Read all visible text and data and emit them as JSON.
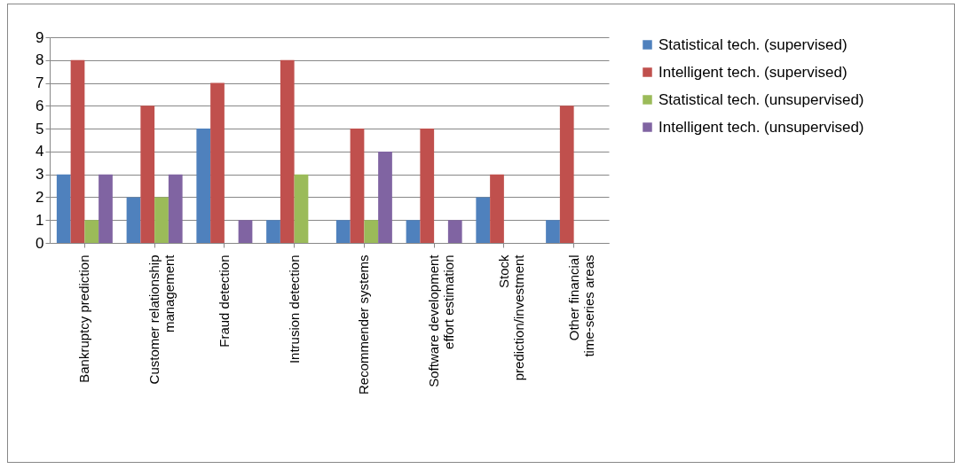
{
  "chart_data": {
    "type": "bar",
    "categories": [
      "Bankruptcy prediction",
      "Customer relationship management",
      "Fraud detection",
      "Intrusion detection",
      "Recommender systems",
      "Software development effort estimation",
      "Stock prediction/investment",
      "Other financial time-series areas"
    ],
    "series": [
      {
        "name": "Statistical tech. (supervised)",
        "color": "#4f81bd",
        "values": [
          3,
          2,
          5,
          1,
          1,
          1,
          2,
          1
        ]
      },
      {
        "name": "Intelligent tech. (supervised)",
        "color": "#c0504d",
        "values": [
          8,
          6,
          7,
          8,
          5,
          5,
          3,
          6
        ]
      },
      {
        "name": "Statistical tech. (unsupervised)",
        "color": "#9bbb59",
        "values": [
          1,
          2,
          0,
          3,
          1,
          0,
          0,
          0
        ]
      },
      {
        "name": "Intelligent tech. (unsupervised)",
        "color": "#8064a2",
        "values": [
          3,
          3,
          1,
          0,
          4,
          1,
          0,
          0
        ]
      }
    ],
    "ylim": [
      0,
      9
    ],
    "yticks": [
      0,
      1,
      2,
      3,
      4,
      5,
      6,
      7,
      8,
      9
    ],
    "grid": "y",
    "legend": "right"
  }
}
